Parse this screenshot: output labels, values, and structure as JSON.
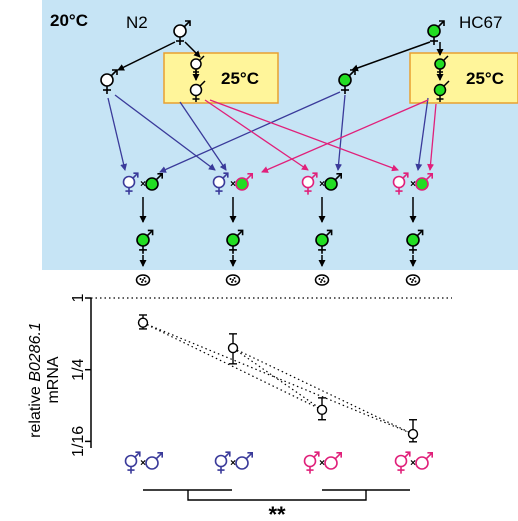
{
  "panel": {
    "temp_main": "20°C",
    "temp_box": "25°C",
    "strain_left": "N2",
    "strain_right": "HC67",
    "cross_symbol": "×"
  },
  "chart_data": {
    "type": "scatter",
    "ylabel_line1_prefix": "relative ",
    "ylabel_line1_gene": "B0286.1",
    "ylabel_line2": "mRNA",
    "y_scale": "log2",
    "ylim": [
      0.055,
      1.0
    ],
    "y_ticks": [
      1,
      0.25,
      0.0625
    ],
    "y_tick_labels": [
      "1",
      "1/4",
      "1/16"
    ],
    "reference_line": 1,
    "categories": [
      "hermaphrodite x N2 male",
      "hermaphrodite x HC67 male",
      "feminized hermaphrodite x N2 male",
      "feminized hermaphrodite x HC67 male"
    ],
    "values": [
      0.62,
      0.38,
      0.115,
      0.072
    ],
    "error_low": [
      0.55,
      0.28,
      0.095,
      0.062
    ],
    "error_high": [
      0.72,
      0.5,
      0.145,
      0.095
    ],
    "dotted_links": [
      [
        0,
        2
      ],
      [
        0,
        3
      ],
      [
        1,
        2
      ],
      [
        1,
        3
      ]
    ],
    "significance": "**"
  },
  "colors": {
    "background_panel": "#c6e4f5",
    "warm_box": "#fff59a",
    "warm_border": "#e8a030",
    "green_fill": "#22dd22",
    "blue": "#3a3a9a",
    "magenta": "#e0207a",
    "black": "#000000"
  },
  "icons": {
    "hermaphrodite": "hermaphrodite-symbol-icon",
    "male": "male-symbol-icon",
    "embryo": "embryo-icon"
  }
}
